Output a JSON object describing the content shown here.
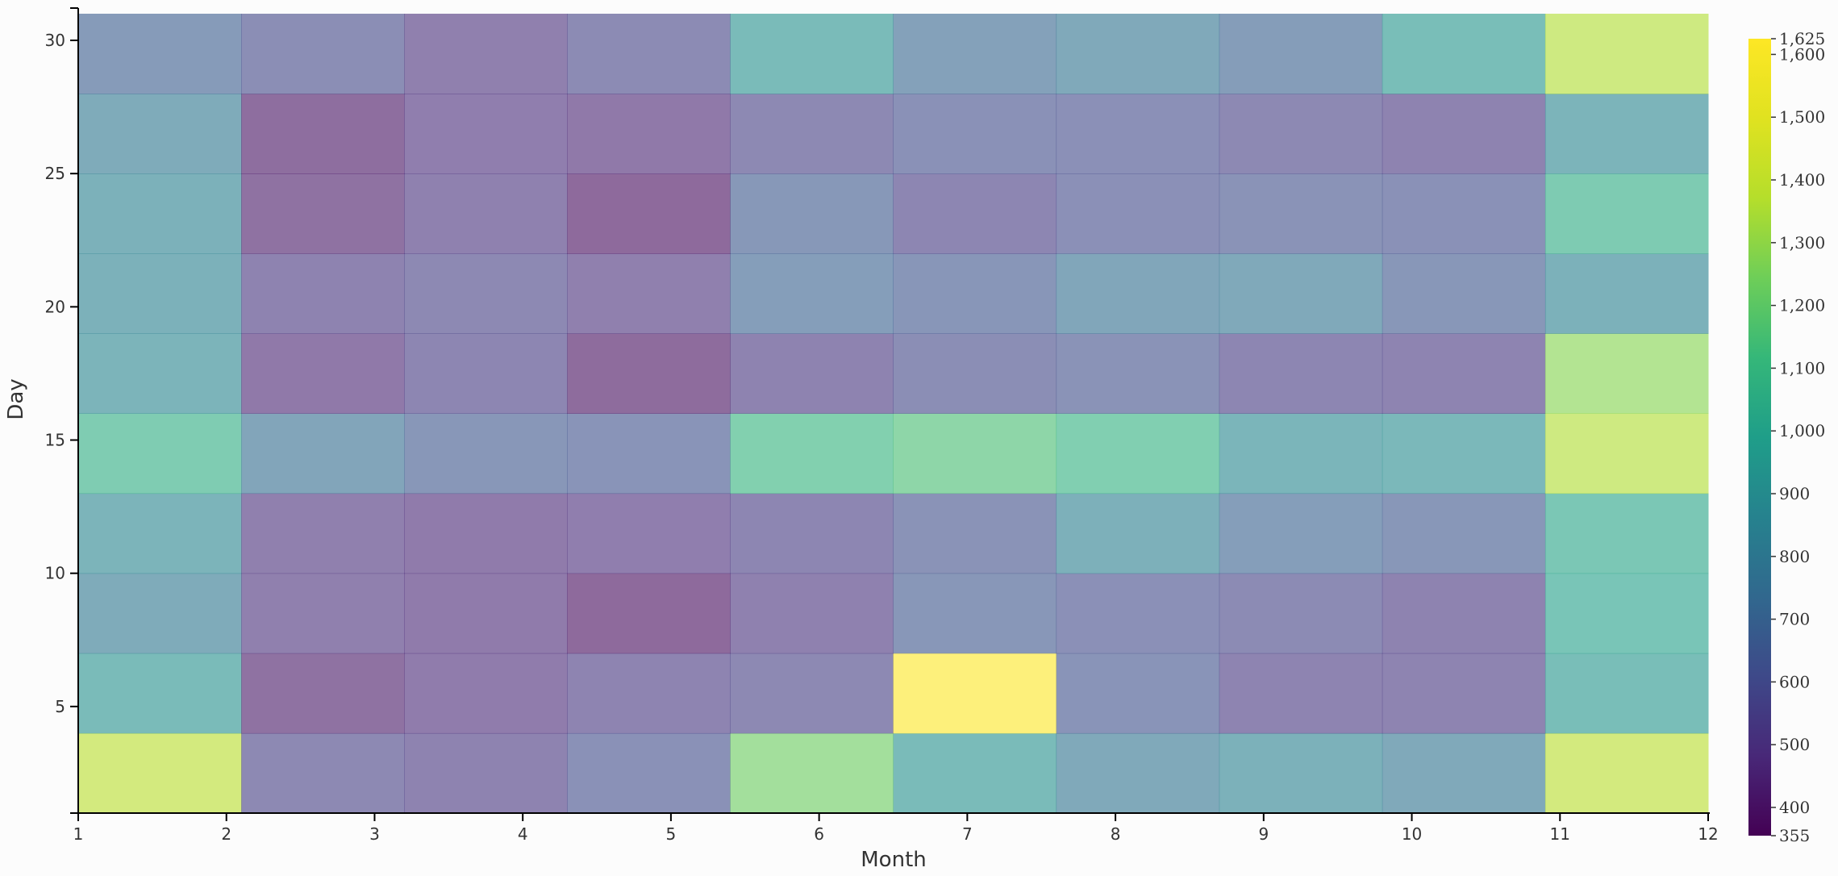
{
  "chart_data": {
    "type": "heatmap",
    "xlabel": "Month",
    "ylabel": "Day",
    "x_ticks": [
      1,
      2,
      3,
      4,
      5,
      6,
      7,
      8,
      9,
      10,
      11,
      12
    ],
    "y_ticks": [
      5,
      10,
      15,
      20,
      25,
      30
    ],
    "xlim": [
      1,
      12
    ],
    "ylim": [
      1,
      31
    ],
    "colorscale": "viridis",
    "cell_opacity": 0.6,
    "color_min": 355,
    "color_max": 1625,
    "colorbar_ticks": [
      355,
      400,
      500,
      600,
      700,
      800,
      900,
      1000,
      1100,
      1200,
      1300,
      1400,
      1500,
      1600,
      1625
    ],
    "colorbar_labels": [
      "355",
      "400",
      "500",
      "600",
      "700",
      "800",
      "900",
      "1,000",
      "1,100",
      "1,200",
      "1,300",
      "1,400",
      "1,500",
      "1,600",
      "1,625"
    ],
    "day_bins": [
      "1-3",
      "4-6",
      "7-9",
      "10-12",
      "13-15",
      "16-18",
      "19-21",
      "22-24",
      "25-27",
      "28-30"
    ],
    "month_bins": [
      "1",
      "2",
      "3",
      "4",
      "5",
      "6",
      "7",
      "8",
      "9",
      "10"
    ],
    "values": [
      [
        1380,
        560,
        520,
        610,
        1230,
        920,
        780,
        850,
        780,
        1380
      ],
      [
        920,
        420,
        480,
        530,
        560,
        1625,
        630,
        530,
        530,
        950
      ],
      [
        800,
        500,
        470,
        380,
        510,
        650,
        600,
        570,
        520,
        1000
      ],
      [
        870,
        500,
        470,
        490,
        540,
        620,
        840,
        700,
        650,
        1020
      ],
      [
        1060,
        750,
        650,
        630,
        1090,
        1150,
        1080,
        880,
        900,
        1360
      ],
      [
        870,
        460,
        540,
        390,
        520,
        590,
        620,
        540,
        530,
        1280
      ],
      [
        850,
        520,
        560,
        500,
        700,
        640,
        760,
        780,
        650,
        850
      ],
      [
        850,
        420,
        510,
        380,
        660,
        540,
        600,
        620,
        610,
        1050
      ],
      [
        800,
        400,
        490,
        460,
        560,
        610,
        600,
        560,
        520,
        870
      ],
      [
        680,
        590,
        500,
        570,
        920,
        720,
        780,
        690,
        950,
        1360
      ]
    ]
  }
}
